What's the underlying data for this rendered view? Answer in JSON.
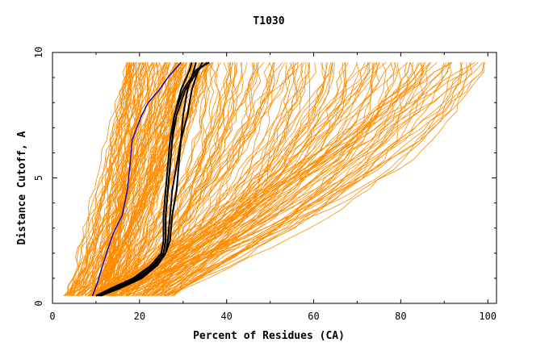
{
  "chart_data": {
    "type": "line",
    "title": "T1030",
    "xlabel": "Percent of Residues (CA)",
    "ylabel": "Distance Cutoff, A",
    "xlim": [
      0,
      102
    ],
    "ylim": [
      0,
      10
    ],
    "xticks": [
      0,
      20,
      40,
      60,
      80,
      100
    ],
    "yticks": [
      0,
      5,
      10
    ],
    "colors": {
      "models": "#ff8c00",
      "highlight": "#000000",
      "blue": "#0000cc",
      "axis": "#000000"
    },
    "grid": false,
    "highlight_series": [
      {
        "x": [
          10,
          14,
          19,
          23,
          25.5,
          26,
          26,
          26.5,
          27,
          27.5,
          28,
          30,
          33,
          36
        ],
        "y": [
          0.3,
          0.6,
          1.0,
          1.5,
          2.0,
          2.5,
          3.5,
          4.5,
          5.5,
          6.5,
          7.5,
          8.5,
          9.3,
          9.6
        ]
      },
      {
        "x": [
          11,
          15,
          20,
          23.5,
          25.5,
          26,
          26,
          26.5,
          27,
          27.5,
          28.5,
          30.5,
          33.5,
          35.5
        ],
        "y": [
          0.3,
          0.6,
          1.0,
          1.5,
          2.0,
          2.5,
          3.5,
          4.5,
          5.5,
          6.5,
          7.5,
          8.5,
          9.3,
          9.6
        ]
      },
      {
        "x": [
          10.5,
          14.5,
          19.5,
          24,
          26,
          27,
          27.5,
          28.5,
          29,
          29.5,
          30,
          31,
          32.5,
          33
        ],
        "y": [
          0.3,
          0.6,
          1.0,
          1.5,
          2.0,
          2.5,
          3.5,
          4.5,
          5.5,
          6.5,
          7.5,
          8.5,
          9.3,
          9.6
        ]
      },
      {
        "x": [
          11,
          15.5,
          20.5,
          24,
          26,
          26.5,
          27,
          27.5,
          28.5,
          29.5,
          31,
          32,
          33.5,
          34.5
        ],
        "y": [
          0.3,
          0.6,
          1.0,
          1.5,
          2.0,
          2.5,
          3.5,
          4.5,
          5.5,
          6.5,
          7.5,
          8.5,
          9.3,
          9.6
        ]
      },
      {
        "x": [
          10,
          13.5,
          18.5,
          22.5,
          25,
          25.5,
          25.5,
          26,
          26.5,
          27,
          28,
          29.5,
          31.5,
          32
        ],
        "y": [
          0.3,
          0.6,
          1.0,
          1.5,
          2.0,
          2.5,
          3.5,
          4.5,
          5.5,
          6.5,
          7.5,
          8.5,
          9.3,
          9.6
        ]
      }
    ],
    "blue_series": {
      "x": [
        9.2,
        10.3,
        11.5,
        12.8,
        14,
        16,
        17.2,
        17.8,
        18.3,
        20.5,
        22,
        24.5,
        26.5,
        29.5
      ],
      "y": [
        0.3,
        0.8,
        1.5,
        2.2,
        2.8,
        3.5,
        4.5,
        5.5,
        6.5,
        7.5,
        8.0,
        8.5,
        9.0,
        9.6
      ]
    }
  }
}
